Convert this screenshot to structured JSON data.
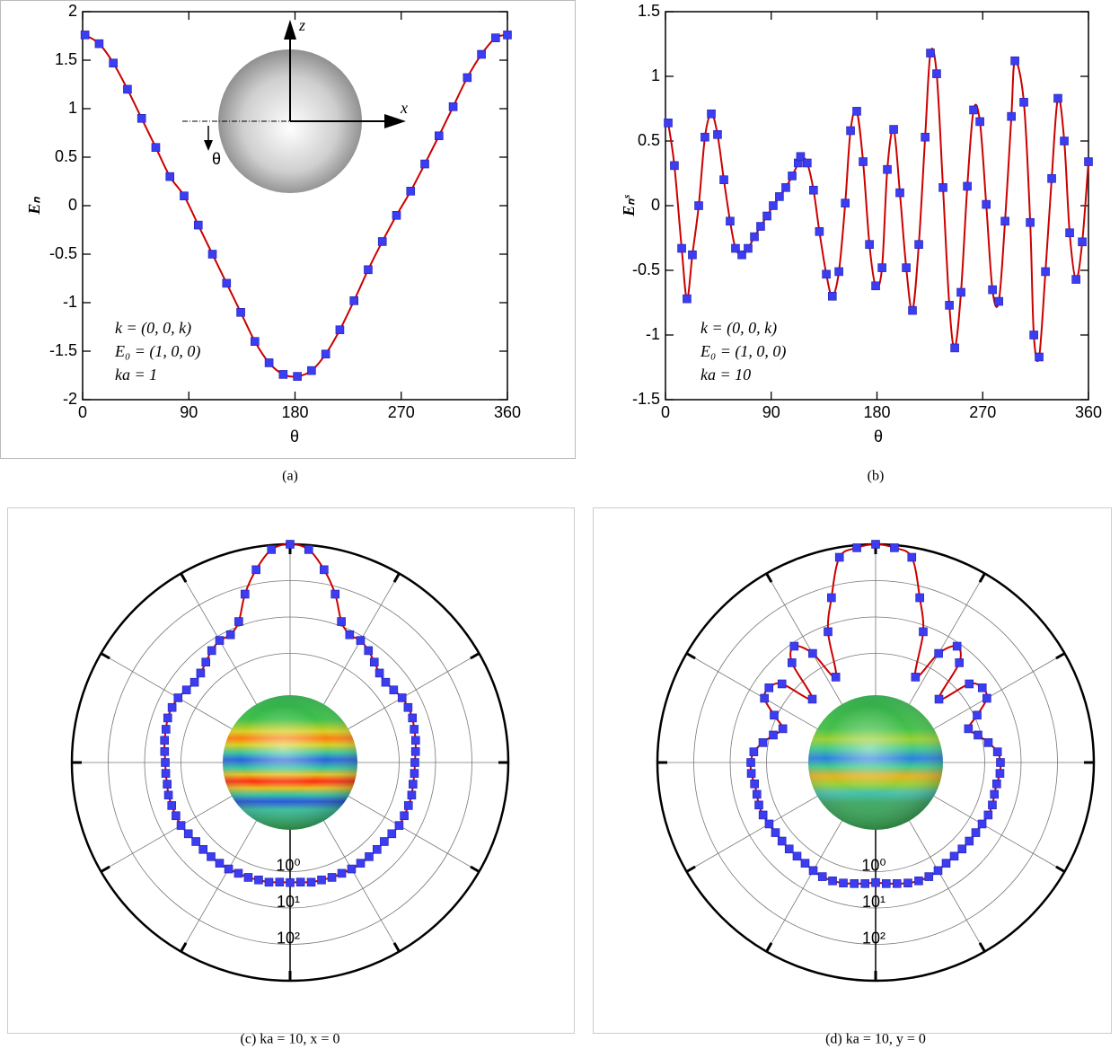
{
  "chart_data": [
    {
      "type": "line",
      "caption": "(a)",
      "xlabel": "θ",
      "ylabel": "Eₙ",
      "annotations": [
        "k = (0, 0, k)",
        "E₀ = (1, 0, 0)",
        "ka = 1"
      ],
      "inset_labels": [
        "z",
        "x",
        "θ"
      ],
      "xlim": [
        0,
        360
      ],
      "xticks": [
        0,
        90,
        180,
        270,
        360
      ],
      "ylim": [
        -2,
        2
      ],
      "yticks": [
        -2,
        -1.5,
        -1,
        -0.5,
        0,
        0.5,
        1,
        1.5,
        2
      ],
      "marker": "square",
      "x": [
        2,
        14,
        26,
        38,
        50,
        62,
        74,
        86,
        98,
        110,
        122,
        134,
        146,
        158,
        170,
        182,
        194,
        206,
        218,
        230,
        242,
        254,
        266,
        278,
        290,
        302,
        314,
        326,
        338,
        350,
        360
      ],
      "series": [
        {
          "color": "#cc0000",
          "marker_color": "#3c3cf0",
          "values": [
            1.76,
            1.67,
            1.47,
            1.2,
            0.9,
            0.6,
            0.3,
            0.1,
            -0.2,
            -0.5,
            -0.8,
            -1.1,
            -1.4,
            -1.62,
            -1.74,
            -1.76,
            -1.7,
            -1.53,
            -1.28,
            -0.98,
            -0.66,
            -0.37,
            -0.1,
            0.15,
            0.43,
            0.72,
            1.02,
            1.32,
            1.56,
            1.73,
            1.76
          ]
        }
      ]
    },
    {
      "type": "line",
      "caption": "(b)",
      "xlabel": "θ",
      "ylabel": "Eₙˢ",
      "annotations": [
        "k = (0, 0, k)",
        "E₀ = (1, 0, 0)",
        "ka = 10"
      ],
      "xlim": [
        0,
        360
      ],
      "xticks": [
        0,
        90,
        180,
        270,
        360
      ],
      "ylim": [
        -1.5,
        1.5
      ],
      "yticks": [
        -1.5,
        -1,
        -0.5,
        0,
        0.5,
        1,
        1.5
      ],
      "marker": "square",
      "x": [
        2.3,
        7.6,
        13.8,
        18.3,
        22.9,
        28.3,
        33.6,
        39,
        44.3,
        49.7,
        55,
        59.6,
        65,
        70.3,
        75.7,
        81,
        86.4,
        91.7,
        97,
        102.4,
        107.8,
        113,
        115,
        120.6,
        126,
        131,
        136.9,
        142,
        147.6,
        153,
        157.5,
        162.8,
        168.2,
        173.6,
        178.9,
        184.3,
        188.8,
        194.2,
        199.5,
        204.9,
        210.2,
        215.6,
        221,
        225.5,
        230.8,
        236.2,
        241.6,
        246.2,
        251.5,
        256.9,
        262.2,
        267.6,
        273,
        278.3,
        283.7,
        289,
        294.4,
        297.4,
        305,
        310.4,
        313.5,
        318,
        323.4,
        328.7,
        334,
        339.4,
        344,
        349.4,
        354.7,
        360
      ],
      "series": [
        {
          "color": "#cc0000",
          "marker_color": "#3c3cf0",
          "values": [
            0.64,
            0.31,
            -0.33,
            -0.72,
            -0.38,
            0,
            0.53,
            0.71,
            0.55,
            0.2,
            -0.12,
            -0.33,
            -0.38,
            -0.33,
            -0.24,
            -0.16,
            -0.08,
            0,
            0.07,
            0.14,
            0.23,
            0.33,
            0.38,
            0.33,
            0.12,
            -0.2,
            -0.53,
            -0.7,
            -0.51,
            0.02,
            0.58,
            0.73,
            0.34,
            -0.3,
            -0.62,
            -0.48,
            0.28,
            0.59,
            0.1,
            -0.48,
            -0.81,
            -0.3,
            0.53,
            1.18,
            1.02,
            0.14,
            -0.77,
            -1.1,
            -0.67,
            0.15,
            0.74,
            0.65,
            0.01,
            -0.65,
            -0.74,
            -0.12,
            0.69,
            1.12,
            0.8,
            -0.13,
            -1,
            -1.17,
            -0.51,
            0.21,
            0.83,
            0.5,
            -0.21,
            -0.57,
            -0.28,
            0.34
          ]
        }
      ]
    },
    {
      "type": "polar",
      "caption": "(c) ka = 10, x = 0",
      "rscale": "log",
      "rlim": [
        0.001,
        1000
      ],
      "rticks": [
        {
          "value": 1,
          "label": "10⁰"
        },
        {
          "value": 10,
          "label": "10¹"
        },
        {
          "value": 100,
          "label": "10²"
        }
      ],
      "thetaticks": [
        0,
        30,
        60,
        90,
        120,
        150,
        180,
        210,
        240,
        270,
        300,
        330
      ],
      "marker": "square",
      "x": [
        0,
        5,
        10,
        15,
        20,
        25,
        30,
        35,
        40,
        45,
        50,
        55,
        60,
        65,
        70,
        75,
        80,
        85,
        90,
        95,
        100,
        105,
        110,
        115,
        120,
        125,
        130,
        135,
        140,
        145,
        150,
        155,
        160,
        165,
        170,
        175,
        180,
        185,
        190,
        195,
        200,
        205,
        210,
        215,
        220,
        225,
        230,
        235,
        240,
        245,
        250,
        255,
        260,
        265,
        270,
        275,
        280,
        285,
        290,
        295,
        300,
        305,
        310,
        315,
        320,
        325,
        330,
        335,
        340,
        345,
        350,
        355
      ],
      "series": [
        {
          "color": "#cc0000",
          "marker_color": "#3c3cf0",
          "values": [
            1000,
            753,
            241,
            62,
            13.3,
            7.5,
            7.5,
            5.7,
            4,
            3,
            2.7,
            3,
            3.6,
            3.8,
            3.8,
            3.4,
            3.2,
            2.9,
            2.7,
            2.7,
            2.7,
            2.9,
            2.9,
            2.9,
            2.9,
            2.6,
            2.4,
            2.4,
            2.4,
            2.4,
            2.4,
            2.3,
            2.3,
            2.2,
            2.2,
            2,
            2,
            2,
            2.2,
            2.2,
            2.3,
            2.3,
            2.4,
            2.4,
            2.4,
            2.4,
            2.4,
            2.6,
            2.9,
            2.9,
            2.9,
            2.9,
            2.7,
            2.7,
            2.7,
            2.9,
            3.2,
            3.4,
            3.8,
            3.8,
            3.6,
            3,
            2.7,
            3,
            4,
            5.7,
            7.5,
            7.5,
            13.3,
            62,
            241,
            753
          ]
        }
      ]
    },
    {
      "type": "polar",
      "caption": "(d) ka = 10, y = 0",
      "rscale": "log",
      "rlim": [
        0.001,
        1000
      ],
      "rticks": [
        {
          "value": 1,
          "label": "10⁰"
        },
        {
          "value": 10,
          "label": "10¹"
        },
        {
          "value": 100,
          "label": "10²"
        }
      ],
      "thetaticks": [
        0,
        30,
        60,
        90,
        120,
        150,
        180,
        210,
        240,
        270,
        300,
        330
      ],
      "marker": "square",
      "x": [
        0,
        5,
        10,
        15,
        20,
        25,
        30,
        35,
        40,
        45,
        50,
        55,
        60,
        65,
        70,
        75,
        80,
        85,
        90,
        95,
        100,
        105,
        110,
        115,
        120,
        125,
        130,
        135,
        140,
        145,
        150,
        155,
        160,
        165,
        170,
        175,
        180,
        185,
        190,
        195,
        200,
        205,
        210,
        215,
        220,
        225,
        230,
        235,
        240,
        245,
        250,
        255,
        260,
        265,
        270,
        275,
        280,
        285,
        290,
        295,
        300,
        305,
        310,
        315,
        320,
        325,
        330,
        335,
        340,
        345,
        350,
        355
      ],
      "series": [
        {
          "color": "#cc0000",
          "marker_color": "#3c3cf0",
          "values": [
            1000,
            843,
            535,
            49,
            6.7,
            0.39,
            2.9,
            8,
            3.8,
            0.29,
            2.3,
            3.8,
            3.4,
            1.2,
            0.52,
            0.82,
            1.4,
            2.3,
            2.7,
            2.7,
            2.4,
            2.4,
            2.6,
            2.6,
            2.4,
            2.3,
            2.3,
            2.3,
            2.3,
            2.4,
            2.7,
            2.9,
            2.9,
            2.7,
            2.4,
            2.2,
            2,
            2.2,
            2.4,
            2.7,
            2.9,
            2.9,
            2.7,
            2.4,
            2.3,
            2.3,
            2.3,
            2.3,
            2.4,
            2.6,
            2.6,
            2.4,
            2.4,
            2.7,
            2.7,
            2.3,
            1.4,
            0.82,
            0.52,
            1.2,
            3.4,
            3.8,
            2.3,
            0.29,
            3.8,
            8,
            2.9,
            0.39,
            6.7,
            49,
            535,
            843
          ]
        }
      ]
    }
  ]
}
